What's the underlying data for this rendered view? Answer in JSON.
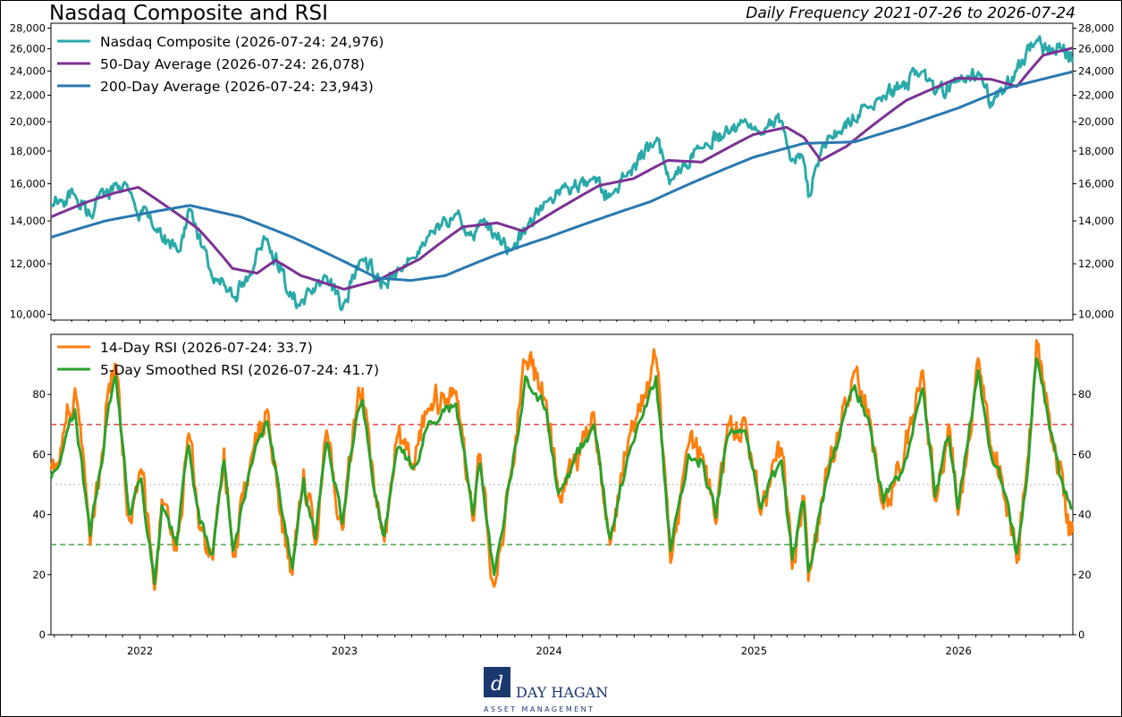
{
  "header": {
    "title": "Nasdaq Composite and RSI",
    "subtitle": "Daily Frequency 2021-07-26 to 2026-07-24"
  },
  "logo": {
    "name": "DAY HAGAN",
    "tagline": "ASSET MANAGEMENT"
  },
  "chart_data": [
    {
      "type": "line",
      "panel": "price",
      "scale": "log",
      "ylim": [
        9800,
        28500
      ],
      "yticks": [
        10000,
        12000,
        14000,
        16000,
        18000,
        20000,
        22000,
        24000,
        26000,
        28000
      ],
      "ytick_labels": [
        "10,000",
        "12,000",
        "14,000",
        "16,000",
        "18,000",
        "20,000",
        "22,000",
        "24,000",
        "26,000",
        "28,000"
      ],
      "xlim": [
        "2021-07-26",
        "2026-07-24"
      ],
      "xticks": [
        "2022",
        "2023",
        "2024",
        "2025",
        "2026"
      ],
      "legend_position": "top-left",
      "grid": false,
      "series": [
        {
          "name": "Nasdaq Composite (2026-07-24: 24,976)",
          "color": "#2ba9a9",
          "dates": [
            "2021-07-26",
            "2021-09-07",
            "2021-10-04",
            "2021-11-19",
            "2021-12-20",
            "2022-01-27",
            "2022-03-14",
            "2022-03-29",
            "2022-05-11",
            "2022-05-20",
            "2022-06-16",
            "2022-07-15",
            "2022-08-16",
            "2022-09-30",
            "2022-10-13",
            "2022-11-30",
            "2022-12-28",
            "2023-02-02",
            "2023-03-13",
            "2023-04-28",
            "2023-07-19",
            "2023-08-18",
            "2023-09-01",
            "2023-10-26",
            "2023-12-29",
            "2024-03-21",
            "2024-04-19",
            "2024-07-10",
            "2024-07-25",
            "2024-08-05",
            "2024-09-30",
            "2024-12-16",
            "2025-01-13",
            "2025-02-19",
            "2025-03-10",
            "2025-03-31",
            "2025-04-08",
            "2025-05-13",
            "2025-07-24",
            "2025-10-29",
            "2025-11-20",
            "2025-12-31",
            "2026-02-05",
            "2026-03-02",
            "2026-03-20",
            "2026-05-20",
            "2026-06-10",
            "2026-06-30",
            "2026-07-15",
            "2026-07-24"
          ],
          "values": [
            14836,
            15374,
            14255,
            16057,
            15100,
            13542,
            12581,
            14619,
            11364,
            11355,
            10646,
            11452,
            13128,
            10576,
            10321,
            11468,
            10213,
            12200,
            11188,
            12226,
            14358,
            13290,
            14031,
            12595,
            15011,
            16399,
            15282,
            18647,
            17182,
            16200,
            18189,
            20173,
            19088,
            20056,
            17468,
            17299,
            15268,
            19010,
            20996,
            23958,
            22078,
            23242,
            23900,
            21200,
            22090,
            26800,
            25600,
            26500,
            25700,
            24976
          ]
        },
        {
          "name": "50-Day Average (2026-07-24: 26,078)",
          "color": "#7b3294",
          "dates": [
            "2021-07-26",
            "2021-09-30",
            "2021-11-19",
            "2021-12-29",
            "2022-02-15",
            "2022-04-15",
            "2022-06-15",
            "2022-07-29",
            "2022-08-31",
            "2022-10-15",
            "2022-12-31",
            "2023-03-01",
            "2023-05-15",
            "2023-07-31",
            "2023-09-30",
            "2023-11-15",
            "2023-12-31",
            "2024-03-31",
            "2024-05-31",
            "2024-07-31",
            "2024-09-30",
            "2024-12-31",
            "2025-02-28",
            "2025-03-31",
            "2025-04-30",
            "2025-06-15",
            "2025-09-30",
            "2025-12-31",
            "2026-02-28",
            "2026-04-15",
            "2026-06-01",
            "2026-07-24"
          ],
          "values": [
            14200,
            15000,
            15500,
            15800,
            14800,
            13600,
            11800,
            11600,
            12150,
            11500,
            10950,
            11300,
            12200,
            13700,
            13900,
            13500,
            14300,
            15900,
            16300,
            17400,
            17300,
            19100,
            19600,
            18900,
            17400,
            18300,
            21600,
            23400,
            23300,
            22700,
            25400,
            26078
          ]
        },
        {
          "name": "200-Day Average (2026-07-24: 23,943)",
          "color": "#2a78b0",
          "dates": [
            "2021-07-26",
            "2021-10-31",
            "2022-01-31",
            "2022-03-31",
            "2022-06-30",
            "2022-09-30",
            "2022-12-31",
            "2023-02-28",
            "2023-04-30",
            "2023-06-30",
            "2023-09-30",
            "2023-12-31",
            "2024-03-31",
            "2024-06-30",
            "2024-09-30",
            "2024-12-31",
            "2025-03-31",
            "2025-06-30",
            "2025-09-30",
            "2025-12-31",
            "2026-03-31",
            "2026-07-24"
          ],
          "values": [
            13200,
            14000,
            14500,
            14800,
            14200,
            13200,
            12100,
            11400,
            11300,
            11500,
            12400,
            13200,
            14100,
            15000,
            16300,
            17600,
            18500,
            18600,
            19700,
            21000,
            22600,
            23943
          ]
        }
      ]
    },
    {
      "type": "line",
      "panel": "rsi",
      "ylim": [
        0,
        100
      ],
      "yticks": [
        0,
        20,
        40,
        60,
        80
      ],
      "xlim": [
        "2021-07-26",
        "2026-07-24"
      ],
      "xticks": [
        "2022",
        "2023",
        "2024",
        "2025",
        "2026"
      ],
      "reference_lines": [
        {
          "value": 70,
          "color": "#e0393e",
          "style": "dashed"
        },
        {
          "value": 50,
          "color": "#bdbdbd",
          "style": "dotted"
        },
        {
          "value": 30,
          "color": "#3aa33a",
          "style": "dashed"
        }
      ],
      "legend_position": "top-left",
      "grid": false,
      "series": [
        {
          "name": "14-Day RSI (2026-07-24: 33.7)",
          "color": "#ff7f0e",
          "dates": [
            "2021-07-26",
            "2021-08-20",
            "2021-09-07",
            "2021-10-04",
            "2021-10-25",
            "2021-11-03",
            "2021-11-19",
            "2021-12-13",
            "2022-01-03",
            "2022-01-27",
            "2022-02-09",
            "2022-03-07",
            "2022-03-29",
            "2022-04-18",
            "2022-05-11",
            "2022-05-31",
            "2022-06-16",
            "2022-07-20",
            "2022-08-16",
            "2022-09-10",
            "2022-09-30",
            "2022-10-20",
            "2022-11-10",
            "2022-11-30",
            "2022-12-28",
            "2023-01-24",
            "2023-02-02",
            "2023-02-24",
            "2023-03-13",
            "2023-04-05",
            "2023-05-05",
            "2023-06-01",
            "2023-07-19",
            "2023-08-18",
            "2023-08-31",
            "2023-09-25",
            "2023-10-26",
            "2023-11-20",
            "2023-12-27",
            "2024-01-18",
            "2024-02-15",
            "2024-03-21",
            "2024-04-19",
            "2024-05-20",
            "2024-06-20",
            "2024-07-10",
            "2024-08-05",
            "2024-09-06",
            "2024-09-30",
            "2024-10-25",
            "2024-11-15",
            "2024-12-16",
            "2025-01-13",
            "2025-02-19",
            "2025-03-10",
            "2025-03-31",
            "2025-04-08",
            "2025-05-13",
            "2025-06-30",
            "2025-07-24",
            "2025-08-20",
            "2025-09-22",
            "2025-10-29",
            "2025-11-20",
            "2025-12-15",
            "2025-12-31",
            "2026-02-05",
            "2026-03-02",
            "2026-03-20",
            "2026-04-15",
            "2026-05-06",
            "2026-05-20",
            "2026-06-10",
            "2026-06-30",
            "2026-07-15",
            "2026-07-24"
          ],
          "values": [
            55,
            70,
            82,
            30,
            60,
            78,
            90,
            38,
            55,
            15,
            45,
            28,
            67,
            35,
            25,
            62,
            26,
            60,
            75,
            40,
            20,
            55,
            30,
            68,
            35,
            78,
            82,
            46,
            31,
            66,
            55,
            75,
            81,
            38,
            60,
            16,
            55,
            91,
            78,
            46,
            60,
            74,
            30,
            62,
            80,
            92,
            24,
            63,
            60,
            37,
            70,
            72,
            40,
            62,
            22,
            46,
            18,
            56,
            88,
            75,
            42,
            55,
            88,
            45,
            70,
            40,
            92,
            60,
            52,
            24,
            60,
            98,
            75,
            55,
            40,
            34
          ]
        },
        {
          "name": "5-Day Smoothed RSI (2026-07-24: 41.7)",
          "color": "#2ca02c",
          "dates": [
            "2021-07-26",
            "2021-08-20",
            "2021-09-07",
            "2021-10-04",
            "2021-10-25",
            "2021-11-03",
            "2021-11-19",
            "2021-12-13",
            "2022-01-03",
            "2022-01-27",
            "2022-02-09",
            "2022-03-07",
            "2022-03-29",
            "2022-04-18",
            "2022-05-11",
            "2022-05-31",
            "2022-06-16",
            "2022-07-20",
            "2022-08-16",
            "2022-09-10",
            "2022-09-30",
            "2022-10-20",
            "2022-11-10",
            "2022-11-30",
            "2022-12-28",
            "2023-01-24",
            "2023-02-02",
            "2023-02-24",
            "2023-03-13",
            "2023-04-05",
            "2023-05-05",
            "2023-06-01",
            "2023-07-19",
            "2023-08-18",
            "2023-08-31",
            "2023-09-25",
            "2023-10-26",
            "2023-11-20",
            "2023-12-27",
            "2024-01-18",
            "2024-02-15",
            "2024-03-21",
            "2024-04-19",
            "2024-05-20",
            "2024-06-20",
            "2024-07-10",
            "2024-08-05",
            "2024-09-06",
            "2024-09-30",
            "2024-10-25",
            "2024-11-15",
            "2024-12-16",
            "2025-01-13",
            "2025-02-19",
            "2025-03-10",
            "2025-03-31",
            "2025-04-08",
            "2025-05-13",
            "2025-06-30",
            "2025-07-24",
            "2025-08-20",
            "2025-09-22",
            "2025-10-29",
            "2025-11-20",
            "2025-12-15",
            "2025-12-31",
            "2026-02-05",
            "2026-03-02",
            "2026-03-20",
            "2026-04-15",
            "2026-05-06",
            "2026-05-20",
            "2026-06-10",
            "2026-06-30",
            "2026-07-15",
            "2026-07-24"
          ],
          "values": [
            52,
            65,
            75,
            33,
            57,
            72,
            86,
            40,
            52,
            17,
            43,
            30,
            63,
            37,
            27,
            58,
            28,
            57,
            71,
            42,
            22,
            52,
            32,
            64,
            37,
            74,
            78,
            47,
            33,
            62,
            56,
            71,
            77,
            40,
            57,
            20,
            53,
            86,
            75,
            47,
            58,
            70,
            32,
            59,
            76,
            86,
            28,
            60,
            58,
            39,
            66,
            68,
            42,
            58,
            25,
            44,
            21,
            53,
            83,
            72,
            44,
            54,
            82,
            46,
            66,
            42,
            88,
            58,
            50,
            27,
            58,
            92,
            72,
            53,
            45,
            42
          ]
        }
      ]
    }
  ]
}
